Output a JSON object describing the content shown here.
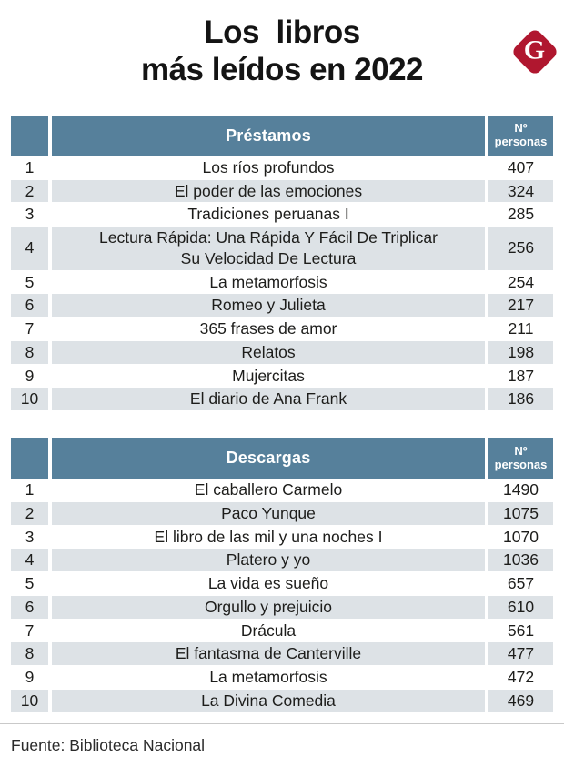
{
  "title": {
    "line1": "Los  libros",
    "line2": "más leídos en 2022"
  },
  "logo": {
    "letter": "G",
    "color": "#b0172f"
  },
  "colors": {
    "header_blue": "#56809b",
    "row_alt_gray": "#dde2e6",
    "logo_red": "#b0172f"
  },
  "tables": [
    {
      "header": {
        "title": "Préstamos",
        "col_line1": "Nº",
        "col_line2": "personas"
      },
      "rows": [
        {
          "rank": "1",
          "title": "Los ríos profundos",
          "value": "407"
        },
        {
          "rank": "2",
          "title": "El poder de las emociones",
          "value": "324"
        },
        {
          "rank": "3",
          "title": "Tradiciones peruanas I",
          "value": "285"
        },
        {
          "rank": "4",
          "title": "Lectura Rápida: Una Rápida Y Fácil De Triplicar\nSu Velocidad De Lectura",
          "value": "256"
        },
        {
          "rank": "5",
          "title": "La metamorfosis",
          "value": "254"
        },
        {
          "rank": "6",
          "title": "Romeo y Julieta",
          "value": "217"
        },
        {
          "rank": "7",
          "title": "365 frases de amor",
          "value": "211"
        },
        {
          "rank": "8",
          "title": "Relatos",
          "value": "198"
        },
        {
          "rank": "9",
          "title": "Mujercitas",
          "value": "187"
        },
        {
          "rank": "10",
          "title": "El diario de Ana Frank",
          "value": "186"
        }
      ]
    },
    {
      "header": {
        "title": "Descargas",
        "col_line1": "Nº",
        "col_line2": "personas"
      },
      "rows": [
        {
          "rank": "1",
          "title": "El caballero Carmelo",
          "value": "1490"
        },
        {
          "rank": "2",
          "title": "Paco Yunque",
          "value": "1075"
        },
        {
          "rank": "3",
          "title": "El libro de las mil y una noches I",
          "value": "1070"
        },
        {
          "rank": "4",
          "title": "Platero y yo",
          "value": "1036"
        },
        {
          "rank": "5",
          "title": "La vida es sueño",
          "value": "657"
        },
        {
          "rank": "6",
          "title": "Orgullo y prejuicio",
          "value": "610"
        },
        {
          "rank": "7",
          "title": "Drácula",
          "value": "561"
        },
        {
          "rank": "8",
          "title": "El fantasma de Canterville",
          "value": "477"
        },
        {
          "rank": "9",
          "title": "La metamorfosis",
          "value": "472"
        },
        {
          "rank": "10",
          "title": "La Divina Comedia",
          "value": "469"
        }
      ]
    }
  ],
  "footer": {
    "source": "Fuente: Biblioteca Nacional"
  }
}
